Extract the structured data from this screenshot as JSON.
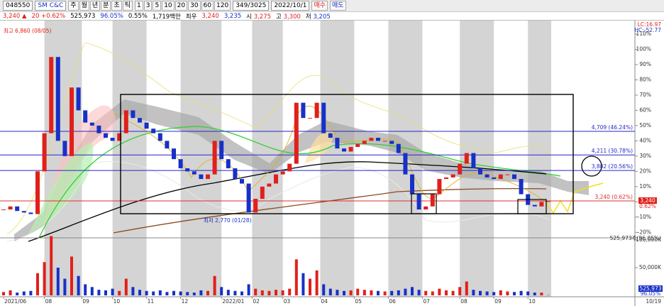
{
  "toolbar": {
    "code": "048550",
    "name": "SM C&C",
    "periods": [
      "주",
      "월",
      "년",
      "분",
      "초",
      "틱"
    ],
    "minutes": [
      "1",
      "3",
      "5",
      "10",
      "20",
      "30",
      "60",
      "120"
    ],
    "count": "349/3025",
    "date": "2022/10/1",
    "buy": "매수",
    "sell": "매도"
  },
  "quote": {
    "price": "3,240",
    "arrow": "▲",
    "change": "20",
    "rate": "+0.62%",
    "volume": "525,973",
    "vol_ratio": "96.05%",
    "turnover": "0.55%",
    "amount": "1,719백만",
    "best_label": "최우",
    "best_ask": "3,240",
    "best_bid": "3,235",
    "open_label": "시",
    "open": "3,275",
    "high_label": "고",
    "high": "3,300",
    "low_label": "저",
    "low": "3,205"
  },
  "chart_data": {
    "type": "candlestick",
    "closes": [
      -5,
      -3,
      -6,
      -7,
      -8,
      20,
      45,
      95,
      40,
      30,
      75,
      60,
      52,
      50,
      45,
      42,
      40,
      45,
      60,
      55,
      52,
      48,
      45,
      40,
      35,
      28,
      22,
      20,
      18,
      15,
      18,
      40,
      28,
      22,
      15,
      12,
      -7,
      2,
      10,
      12,
      18,
      20,
      25,
      65,
      55,
      55,
      65,
      45,
      42,
      35,
      33,
      36,
      38,
      40,
      42,
      40,
      40,
      38,
      32,
      18,
      5,
      -5,
      -3,
      5,
      15,
      16,
      18,
      25,
      32,
      22,
      18,
      16,
      15,
      18,
      18,
      15,
      5,
      -2,
      -3,
      0,
      0.62
    ],
    "volumes": [
      6000,
      9000,
      5000,
      7000,
      8000,
      40000,
      60000,
      107000,
      50000,
      30000,
      70000,
      35000,
      20000,
      15000,
      10000,
      9000,
      12000,
      8000,
      30000,
      15000,
      10000,
      8000,
      7000,
      9000,
      6000,
      8000,
      7000,
      6000,
      5000,
      9000,
      8000,
      35000,
      15000,
      10000,
      8000,
      7000,
      20000,
      12000,
      9000,
      8000,
      10000,
      9000,
      12000,
      65000,
      40000,
      30000,
      45000,
      20000,
      12000,
      10000,
      8000,
      9000,
      12000,
      10000,
      9000,
      8000,
      7000,
      8000,
      9000,
      12000,
      15000,
      10000,
      8000,
      7000,
      12000,
      9000,
      8000,
      15000,
      25000,
      10000,
      8000,
      7000,
      6000,
      9000,
      7000,
      6000,
      8000,
      7000,
      5000,
      5000,
      526
    ],
    "up_color": "#e0201b",
    "down_color": "#1730c8",
    "xlim": [
      0,
      93
    ],
    "xticks": [
      {
        "value": 0,
        "label": "2021/06"
      },
      {
        "value": 6,
        "label": "08"
      },
      {
        "value": 11.5,
        "label": "09"
      },
      {
        "value": 16,
        "label": "10"
      },
      {
        "value": 21,
        "label": "11"
      },
      {
        "value": 26,
        "label": "12"
      },
      {
        "value": 32,
        "label": "2022/01"
      },
      {
        "value": 36.5,
        "label": "02"
      },
      {
        "value": 41,
        "label": "03"
      },
      {
        "value": 46.5,
        "label": "04"
      },
      {
        "value": 51.5,
        "label": "05"
      },
      {
        "value": 56.5,
        "label": "06"
      },
      {
        "value": 61.5,
        "label": "07"
      },
      {
        "value": 67,
        "label": "08"
      },
      {
        "value": 72,
        "label": "09"
      },
      {
        "value": 77,
        "label": "10"
      }
    ],
    "ylim": [
      -23.6,
      118.4
    ],
    "yticks": [
      {
        "value": -20,
        "label": "-20%"
      },
      {
        "value": -10,
        "label": "-10%"
      },
      {
        "value": 0,
        "label": "0%"
      },
      {
        "value": 10,
        "label": "10%"
      },
      {
        "value": 20,
        "label": "20%"
      },
      {
        "value": 30,
        "label": "30%"
      },
      {
        "value": 40,
        "label": "40%"
      },
      {
        "value": 50,
        "label": "50%"
      },
      {
        "value": 60,
        "label": "60%"
      },
      {
        "value": 70,
        "label": "70%"
      },
      {
        "value": 80,
        "label": "80%"
      },
      {
        "value": 90,
        "label": "90%"
      },
      {
        "value": 100,
        "label": "100%"
      },
      {
        "value": 110,
        "label": "110%"
      }
    ],
    "levels": [
      {
        "value": 46.24,
        "label": "4,709 (46.24%)",
        "color": "#2626c8"
      },
      {
        "value": 30.78,
        "label": "4,211 (30.78%)",
        "color": "#2626c8"
      },
      {
        "value": 20.56,
        "label": "3,882 (20.56%)",
        "color": "#2626c8"
      },
      {
        "value": 0.62,
        "label": "3,240 (0.62%)",
        "color": "#e03030"
      }
    ],
    "vol_ylim": [
      0,
      103800
    ],
    "vol_yticks": [
      {
        "value": 50000,
        "label": "50,000K"
      },
      {
        "value": 100000,
        "label": "100,000K"
      }
    ],
    "high_note": "최고 6,860 (08/05)",
    "low_note": "최저 2,770 (01/28)",
    "lc": "LC:16.97",
    "hc": "HC:-52.77",
    "volume_note": "525,973주(96.05%)",
    "price_tag": "3,240",
    "price_tag_rate": "0.62%",
    "last_volume": "525,973",
    "last_vol_ratio": "96.05%",
    "last_date": "10/19"
  }
}
